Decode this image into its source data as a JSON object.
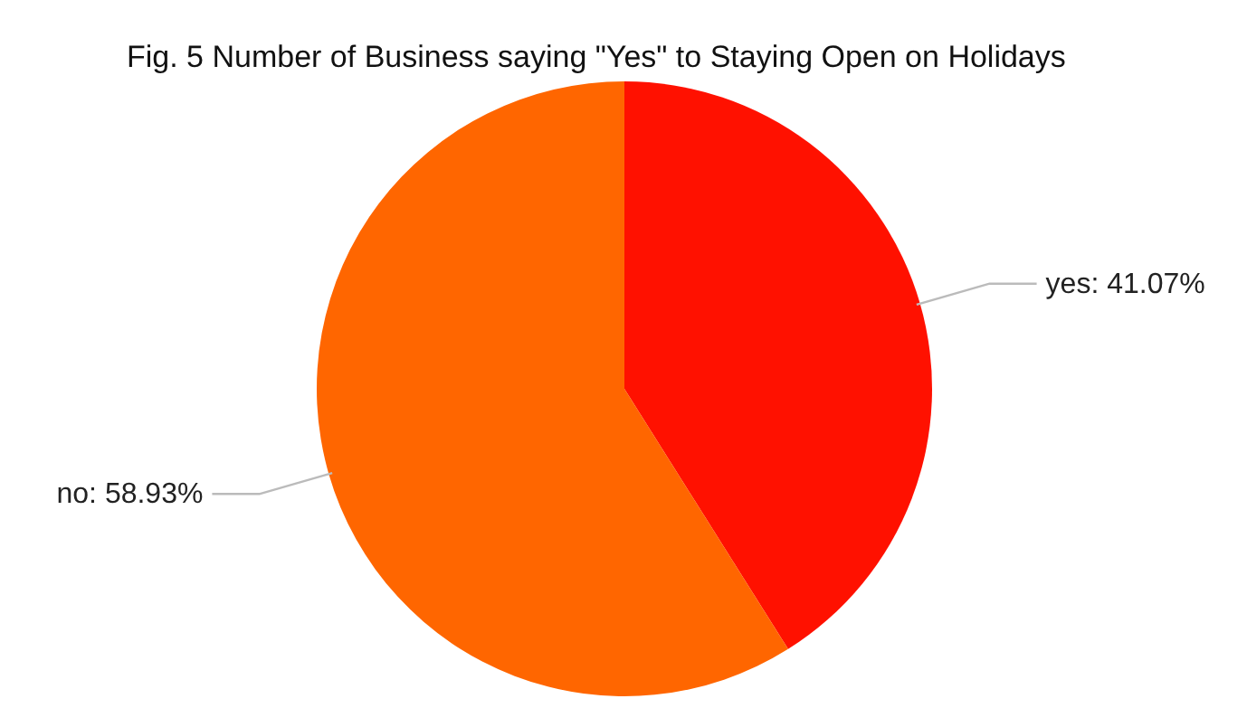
{
  "chart_data": {
    "type": "pie",
    "title": "Fig. 5 Number of Business saying \"Yes\" to Staying Open on Holidays",
    "categories": [
      "yes: 41.07%",
      "no: 58.93%"
    ],
    "values": [
      41.07,
      58.93
    ],
    "colors": [
      "#ff1100",
      "#ff6600"
    ]
  }
}
